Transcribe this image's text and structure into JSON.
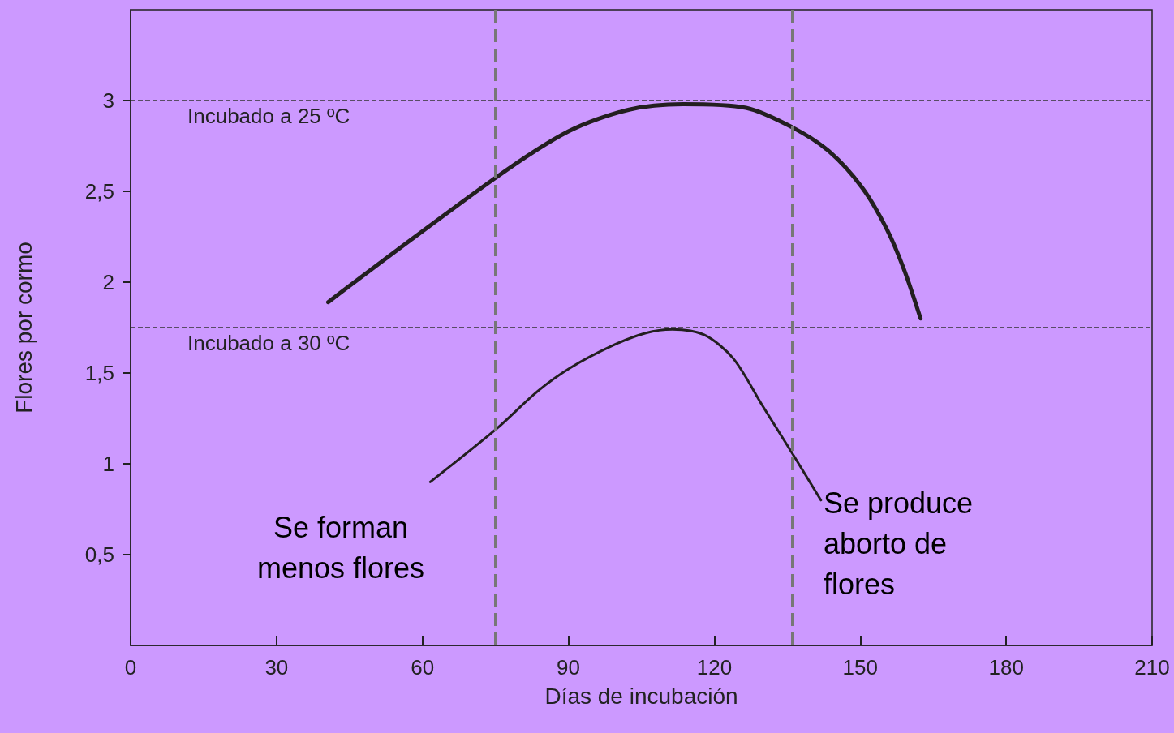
{
  "chart_data": {
    "type": "line",
    "xlabel": "Días de incubación",
    "ylabel": "Flores por cormo",
    "xlim": [
      0,
      210
    ],
    "xticks": [
      0,
      30,
      60,
      90,
      120,
      150,
      180,
      210
    ],
    "ylim": [
      0,
      3.5
    ],
    "yticks": [
      {
        "value": 0.5,
        "label": "0,5"
      },
      {
        "value": 1,
        "label": "1"
      },
      {
        "value": 1.5,
        "label": "1,5"
      },
      {
        "value": 2,
        "label": "2"
      },
      {
        "value": 2.5,
        "label": "2,5"
      },
      {
        "value": 3,
        "label": "3"
      }
    ],
    "series": [
      {
        "color": "#231f20",
        "x": [
          40.6,
          74.8,
          90,
          102.5,
          113.6,
          126.5,
          136.2,
          143.6,
          150.4,
          155.5,
          159,
          162.4
        ],
        "values": [
          1.89,
          2.57,
          2.83,
          2.95,
          2.98,
          2.96,
          2.85,
          2.72,
          2.52,
          2.29,
          2.07,
          1.8
        ]
      },
      {
        "color": "#231f20",
        "x": [
          61.6,
          75.1,
          83.7,
          90.5,
          99,
          105.9,
          111.4,
          117.9,
          123.9,
          129.9,
          136.2,
          141.9
        ],
        "values": [
          0.9,
          1.19,
          1.4,
          1.53,
          1.65,
          1.72,
          1.74,
          1.71,
          1.58,
          1.32,
          1.05,
          0.8
        ]
      }
    ],
    "ref_lines": [
      {
        "axis": "y",
        "value": 3,
        "label": "Incubado a 25 ºC",
        "color": "#333333",
        "line_style": "dashed"
      },
      {
        "axis": "y",
        "value": 1.75,
        "label": "Incubado a 30 ºC",
        "color": "#333333",
        "line_style": "dashed"
      },
      {
        "axis": "x",
        "value": 75,
        "color": "#777777",
        "line_style": "dashed"
      },
      {
        "axis": "x",
        "value": 136,
        "color": "#777777",
        "line_style": "dashed"
      }
    ],
    "annotations": [
      "Se forman menos flores",
      "Se produce aborto de flores"
    ],
    "grid": false,
    "marker": "none",
    "line_style": "solid"
  }
}
